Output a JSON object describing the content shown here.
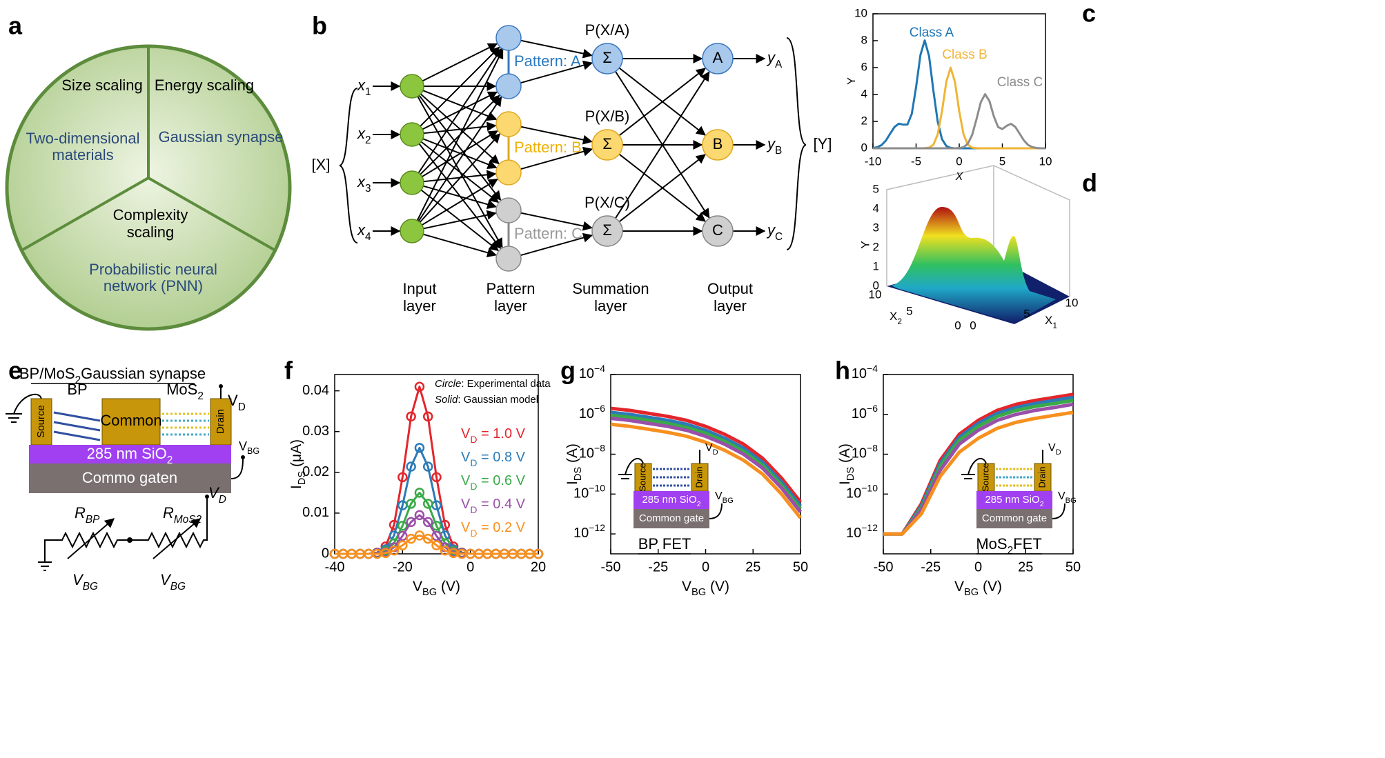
{
  "panel_labels": [
    "a",
    "b",
    "c",
    "d",
    "e",
    "f",
    "g",
    "h"
  ],
  "panel_a": {
    "segments": [
      {
        "heading": [
          "Size scaling"
        ],
        "caption": [
          "Two-dimensional",
          "materials"
        ]
      },
      {
        "heading": [
          "Energy scaling"
        ],
        "caption": [
          "Gaussian synapse"
        ]
      },
      {
        "heading": [
          "Complexity",
          "scaling"
        ],
        "caption": [
          "Probabilistic neural",
          "network (PNN)"
        ]
      }
    ]
  },
  "panel_b": {
    "inputs": [
      "x1",
      "x2",
      "x3",
      "x4"
    ],
    "input_group": "[X]",
    "patterns": [
      "Pattern: A",
      "Pattern: B",
      "Pattern: C"
    ],
    "summation_titles": [
      "P(X/A)",
      "P(X/B)",
      "P(X/C)"
    ],
    "summation_symbols": [
      "Σ",
      "Σ",
      "Σ"
    ],
    "outputs": [
      "A",
      "B",
      "C"
    ],
    "output_values": [
      "yA",
      "yB",
      "yC"
    ],
    "output_group": "[Y]",
    "layers": [
      [
        "Input",
        "layer"
      ],
      [
        "Pattern",
        "layer"
      ],
      [
        "Summation",
        "layer"
      ],
      [
        "Output",
        "layer"
      ]
    ]
  },
  "panel_d": {
    "zlabel": "Y",
    "zticks": [
      0,
      1,
      2,
      3,
      4,
      5
    ],
    "x2label": "X2",
    "x2ticks": [
      10,
      5,
      0
    ],
    "x1label": "X1",
    "x1ticks": [
      0,
      5,
      10
    ]
  },
  "panel_e": {
    "title": "BP/MoS2Gaussian synapse",
    "bp": "BP",
    "mos2": "MoS2",
    "vd": "VD",
    "source": "Source",
    "common": "Common",
    "drain": "Drain",
    "oxide": "285 nm SiO2",
    "vbg": "VBG",
    "gate": "Commo gaten",
    "circuit": {
      "r_bp": "RBP",
      "r_mos2": "RMoS2",
      "vd": "VD",
      "vbg": [
        "VBG",
        "VBG"
      ]
    }
  },
  "chart_data": [
    {
      "type": "line",
      "xlabel": "X",
      "ylabel": "Y",
      "x": [
        -10,
        -9.5,
        -9,
        -8.5,
        -8,
        -7.5,
        -7,
        -6.5,
        -6,
        -5.5,
        -5,
        -4.5,
        -4,
        -3.5,
        -3,
        -2.5,
        -2,
        -1.5,
        -1,
        -0.5,
        0,
        0.5,
        1,
        1.5,
        2,
        2.5,
        3,
        3.5,
        4,
        4.5,
        5,
        5.5,
        6,
        6.5,
        7,
        7.5,
        8,
        8.5,
        9,
        9.5,
        10
      ],
      "series": [
        {
          "name": "Class A",
          "color": "#1f77b4",
          "values": [
            0.02,
            0.08,
            0.24,
            0.58,
            1.09,
            1.59,
            1.83,
            1.76,
            1.77,
            2.57,
            4.55,
            6.94,
            8.02,
            6.86,
            4.31,
            1.99,
            0.68,
            0.17,
            0.03,
            0,
            0,
            0,
            0,
            0,
            0,
            0,
            0,
            0,
            0,
            0,
            0,
            0,
            0,
            0,
            0,
            0,
            0,
            0,
            0,
            0,
            0
          ]
        },
        {
          "name": "Class B",
          "color": "#f0b535",
          "values": [
            0,
            0,
            0,
            0,
            0,
            0,
            0,
            0,
            0,
            0,
            0,
            0,
            0.01,
            0.05,
            0.26,
            1.03,
            2.75,
            4.94,
            6,
            4.94,
            2.75,
            1.03,
            0.26,
            0.05,
            0.01,
            0,
            0,
            0,
            0,
            0,
            0,
            0,
            0,
            0,
            0,
            0,
            0,
            0,
            0,
            0,
            0
          ]
        },
        {
          "name": "Class C",
          "color": "#8c8c8c",
          "values": [
            0,
            0,
            0,
            0,
            0,
            0,
            0,
            0,
            0,
            0,
            0,
            0,
            0,
            0,
            0,
            0,
            0,
            0,
            0,
            0,
            0.02,
            0.08,
            0.34,
            1.0,
            2.16,
            3.43,
            4.02,
            3.51,
            2.4,
            1.58,
            1.43,
            1.67,
            1.82,
            1.59,
            1.09,
            0.58,
            0.24,
            0.08,
            0.02,
            0,
            0
          ]
        }
      ],
      "xlim": [
        -10,
        10
      ],
      "ylim": [
        0,
        10
      ],
      "xticks": [
        -10,
        -5,
        0,
        5,
        10
      ],
      "yticks": [
        0,
        2,
        4,
        6,
        8,
        10
      ]
    },
    {
      "type": "line",
      "xlabel": "VBG (V)",
      "ylabel": "IDS (μA)",
      "annotations": [
        "Circle: Experimental data",
        "Solid: Gaussian model"
      ],
      "x": [
        -40,
        -37.5,
        -35,
        -32.5,
        -30,
        -27.5,
        -25,
        -22.5,
        -20,
        -17.5,
        -15,
        -12.5,
        -10,
        -7.5,
        -5,
        -2.5,
        0,
        2.5,
        5,
        7.5,
        10,
        12.5,
        15,
        17.5,
        20
      ],
      "series": [
        {
          "name": "VD = 1.0 V",
          "color": "#e3262c",
          "values": [
            0,
            0,
            0,
            0,
            0,
            0.0003,
            0.0018,
            0.0071,
            0.0188,
            0.0337,
            0.041,
            0.0337,
            0.0188,
            0.0071,
            0.0018,
            0.0003,
            0,
            0,
            0,
            0,
            0,
            0,
            0,
            0,
            0
          ]
        },
        {
          "name": "VD = 0.8 V",
          "color": "#2c7bb6",
          "values": [
            0,
            0,
            0,
            0,
            0,
            0.0002,
            0.0011,
            0.0045,
            0.0119,
            0.0214,
            0.026,
            0.0214,
            0.0119,
            0.0045,
            0.0011,
            0.0002,
            0,
            0,
            0,
            0,
            0,
            0,
            0,
            0,
            0
          ]
        },
        {
          "name": "VD = 0.6 V",
          "color": "#3aaa48",
          "values": [
            0,
            0,
            0,
            0,
            0,
            0.0001,
            0.0007,
            0.0026,
            0.0069,
            0.0123,
            0.015,
            0.0123,
            0.0069,
            0.0026,
            0.0007,
            0.0001,
            0,
            0,
            0,
            0,
            0,
            0,
            0,
            0,
            0
          ]
        },
        {
          "name": "VD = 0.4 V",
          "color": "#9a4fa8",
          "values": [
            0,
            0,
            0,
            0,
            0,
            0.0001,
            0.0004,
            0.0016,
            0.0044,
            0.0078,
            0.0095,
            0.0078,
            0.0044,
            0.0016,
            0.0004,
            0.0001,
            0,
            0,
            0,
            0,
            0,
            0,
            0,
            0,
            0
          ]
        },
        {
          "name": "VD = 0.2 V",
          "color": "#f7901e",
          "values": [
            0,
            0,
            0,
            0,
            0,
            0,
            0.0002,
            0.0008,
            0.0021,
            0.0037,
            0.0045,
            0.0037,
            0.0021,
            0.0008,
            0.0002,
            0,
            0,
            0,
            0,
            0,
            0,
            0,
            0,
            0,
            0
          ]
        }
      ],
      "xlim": [
        -40,
        20
      ],
      "ylim": [
        0,
        0.044
      ],
      "xticks": [
        -40,
        -20,
        0,
        20
      ],
      "yticks": [
        0,
        0.01,
        0.02,
        0.03,
        0.04
      ]
    },
    {
      "type": "line",
      "log_y": true,
      "xlabel": "VBG (V)",
      "ylabel": "IDS (A)",
      "annotation": "BP FET",
      "inset": {
        "source": "Source",
        "drain": "Drain",
        "vd": "VD",
        "oxide": "285 nm SiO2",
        "vbg": "VBG",
        "gate": "Common gate"
      },
      "x": [
        -50,
        -40,
        -30,
        -20,
        -10,
        0,
        10,
        20,
        30,
        40,
        50
      ],
      "series": [
        {
          "color": "#e3262c",
          "values": [
            2e-06,
            1.58e-06,
            1.12e-06,
            7.9e-07,
            5e-07,
            2.5e-07,
            1e-07,
            3.2e-08,
            6.3e-09,
            6.3e-10,
            4e-11
          ]
        },
        {
          "color": "#2c7bb6",
          "values": [
            1.26e-06,
            1e-06,
            7.1e-07,
            5e-07,
            3.2e-07,
            1.58e-07,
            6.3e-08,
            2e-08,
            4e-09,
            4e-10,
            2.5e-11
          ]
        },
        {
          "color": "#3aaa48",
          "values": [
            8.9e-07,
            7.1e-07,
            5e-07,
            3.5e-07,
            2.2e-07,
            1.12e-07,
            4.5e-08,
            1.4e-08,
            2.8e-09,
            2.8e-10,
            1.8e-11
          ]
        },
        {
          "color": "#9a4fa8",
          "values": [
            6.3e-07,
            5e-07,
            3.5e-07,
            2.5e-07,
            1.58e-07,
            7.9e-08,
            3.2e-08,
            1e-08,
            2e-09,
            2e-10,
            1.26e-11
          ]
        },
        {
          "color": "#f7901e",
          "values": [
            3.2e-07,
            2.5e-07,
            1.78e-07,
            1.26e-07,
            7.9e-08,
            4e-08,
            1.58e-08,
            5e-09,
            1e-09,
            1e-10,
            6.3e-12
          ]
        }
      ],
      "xlim": [
        -50,
        50
      ],
      "ylim": [
        1e-13,
        0.0001
      ],
      "xticks": [
        -50,
        -25,
        0,
        25,
        50
      ],
      "yticks": [
        {
          "value": 1e-12,
          "label": "10−12"
        },
        {
          "value": 1e-10,
          "label": "10−10"
        },
        {
          "value": 1e-08,
          "label": "10−8"
        },
        {
          "value": 1e-06,
          "label": "10−6"
        },
        {
          "value": 0.0001,
          "label": "10−4"
        }
      ]
    },
    {
      "type": "line",
      "log_y": true,
      "xlabel": "VBG (V)",
      "ylabel": "IDS (A)",
      "annotation": "MoS2FET",
      "inset": {
        "source": "Source",
        "drain": "Drain",
        "vd": "VD",
        "oxide": "285 nm SiO2",
        "vbg": "VBG",
        "gate": "Common gate"
      },
      "x": [
        -50,
        -40,
        -30,
        -20,
        -10,
        0,
        10,
        20,
        30,
        40,
        50
      ],
      "series": [
        {
          "color": "#e3262c",
          "values": [
            1e-12,
            1e-12,
            3.2e-11,
            5e-09,
            1e-07,
            5e-07,
            1.58e-06,
            3.2e-06,
            5e-06,
            7.1e-06,
            1e-05
          ]
        },
        {
          "color": "#2c7bb6",
          "values": [
            1e-12,
            1e-12,
            2.5e-11,
            3.5e-09,
            7.1e-08,
            3.5e-07,
            1.12e-06,
            2.2e-06,
            3.5e-06,
            5e-06,
            7.1e-06
          ]
        },
        {
          "color": "#3aaa48",
          "values": [
            1e-12,
            1e-12,
            2e-11,
            2.5e-09,
            5e-08,
            2.5e-07,
            7.9e-07,
            1.58e-06,
            2.5e-06,
            3.5e-06,
            5e-06
          ]
        },
        {
          "color": "#9a4fa8",
          "values": [
            1e-12,
            1e-12,
            1.58e-11,
            1.58e-09,
            3.2e-08,
            1.58e-07,
            5e-07,
            1e-06,
            1.58e-06,
            2.2e-06,
            3.2e-06
          ]
        },
        {
          "color": "#f7901e",
          "values": [
            1e-12,
            1e-12,
            1e-11,
            7.9e-10,
            1.26e-08,
            6.3e-08,
            2e-07,
            4e-07,
            6.3e-07,
            8.9e-07,
            1.26e-06
          ]
        }
      ],
      "xlim": [
        -50,
        50
      ],
      "ylim": [
        1e-13,
        0.0001
      ],
      "xticks": [
        -50,
        -25,
        0,
        25,
        50
      ],
      "yticks": [
        {
          "value": 1e-12,
          "label": "10−12"
        },
        {
          "value": 1e-10,
          "label": "10−10"
        },
        {
          "value": 1e-08,
          "label": "10−8"
        },
        {
          "value": 1e-06,
          "label": "10−6"
        },
        {
          "value": 0.0001,
          "label": "10−4"
        }
      ]
    }
  ]
}
